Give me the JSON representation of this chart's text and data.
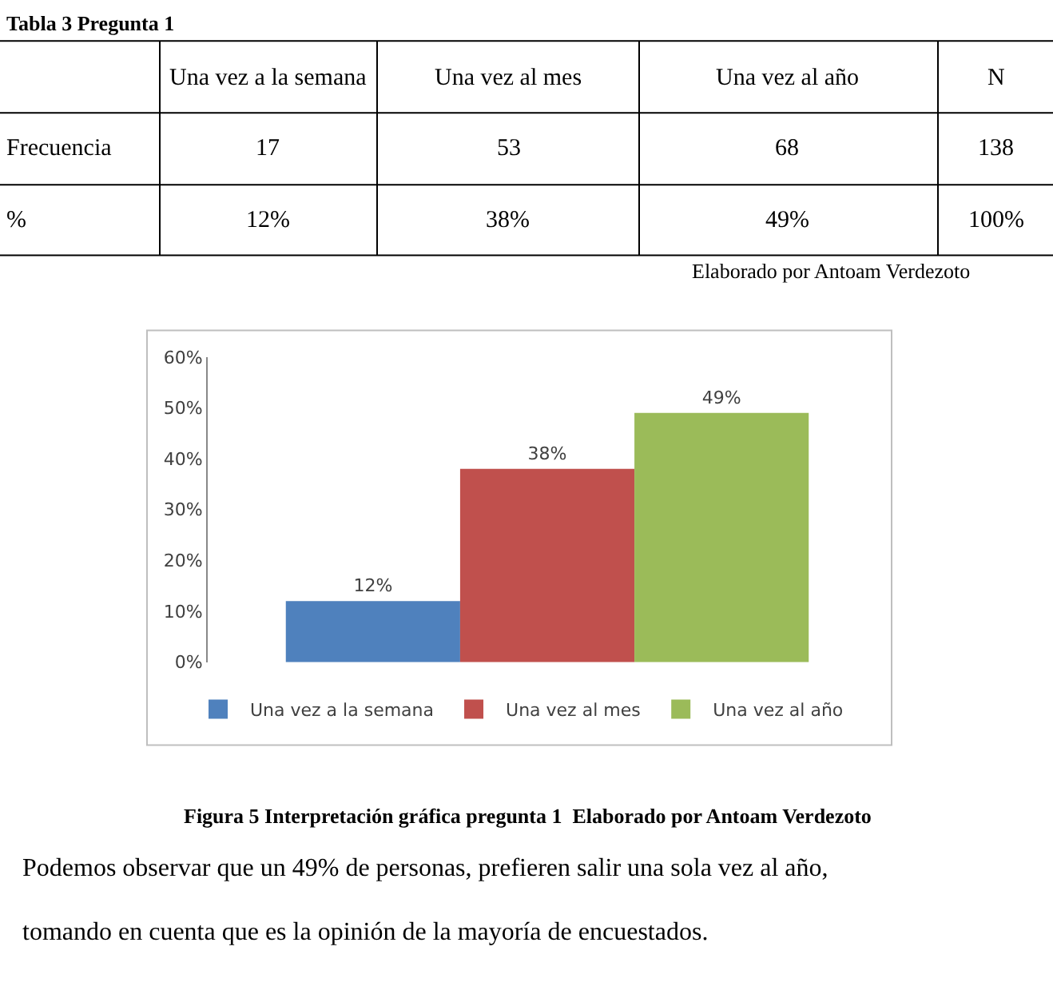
{
  "chart_data": {
    "type": "bar",
    "categories": [
      null
    ],
    "series": [
      {
        "name": "Una vez a la semana",
        "color": "#4f81bd",
        "values": [
          12
        ],
        "value_labels": [
          "12%"
        ]
      },
      {
        "name": "Una vez al mes",
        "color": "#c0504d",
        "values": [
          38
        ],
        "value_labels": [
          "38%"
        ]
      },
      {
        "name": "Una vez al año",
        "color": "#9bbb59",
        "values": [
          49
        ],
        "value_labels": [
          "49%"
        ]
      }
    ],
    "ylim": [
      0,
      60
    ],
    "yticks": [
      {
        "value": 0,
        "label": "0%"
      },
      {
        "value": 10,
        "label": "10%"
      },
      {
        "value": 20,
        "label": "20%"
      },
      {
        "value": 30,
        "label": "30%"
      },
      {
        "value": 40,
        "label": "40%"
      },
      {
        "value": 50,
        "label": "50%"
      },
      {
        "value": 60,
        "label": "60%"
      }
    ],
    "tick_labels": "y",
    "legend": "bottom",
    "annotations": [
      "Tabla 3 Pregunta 1",
      "Una vez a la semana",
      "Una vez al mes",
      "Una vez al año",
      "N",
      "Frecuencia",
      "17",
      "53",
      "68",
      "138",
      "%",
      "12%",
      "38%",
      "49%",
      "100%",
      "Elaborado por Antoam Verdezoto",
      "Figura 5 Interpretación gráfica pregunta 1  Elaborado por Antoam Verdezoto",
      "Podemos observar que un 49% de personas, prefieren salir una sola vez al año,",
      "tomando en cuenta que es la opinión de la mayoría de encuestados."
    ]
  }
}
